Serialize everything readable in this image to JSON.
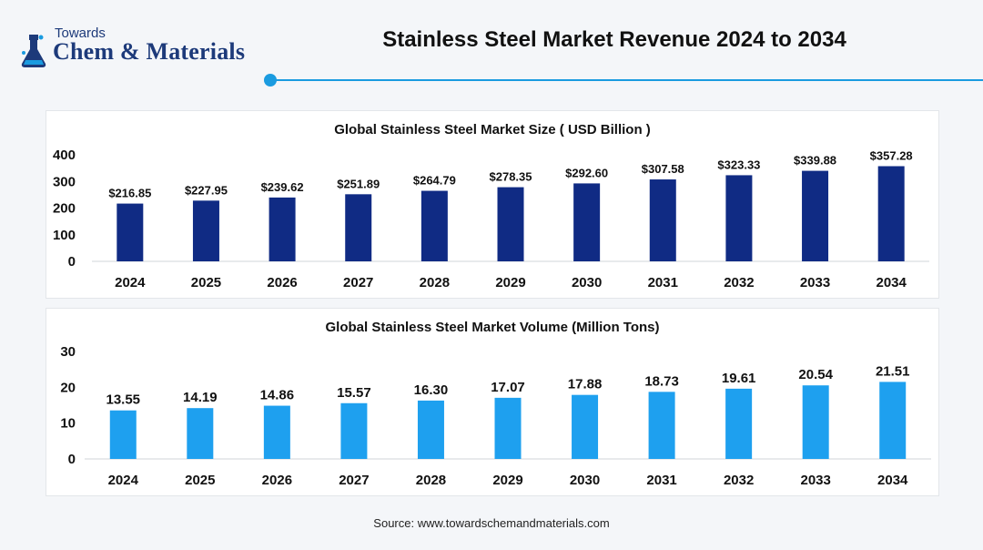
{
  "header": {
    "logo_small": "Towards",
    "logo_main": "Chem & Materials",
    "title": "Stainless Steel Market Revenue 2024 to 2034"
  },
  "colors": {
    "accent": "#1a9be0",
    "revenue_bar": "#102b84",
    "volume_bar": "#1ea0ef"
  },
  "icons": [
    "flask-icon"
  ],
  "source": "Source: www.towardschemandmaterials.com",
  "chart_data": [
    {
      "type": "bar",
      "title": "Global Stainless Steel Market Size ( USD Billion )",
      "categories": [
        "2024",
        "2025",
        "2026",
        "2027",
        "2028",
        "2029",
        "2030",
        "2031",
        "2032",
        "2033",
        "2034"
      ],
      "values": [
        216.85,
        227.95,
        239.62,
        251.89,
        264.79,
        278.35,
        292.6,
        307.58,
        323.33,
        339.88,
        357.28
      ],
      "data_labels": [
        "$216.85",
        "$227.95",
        "$239.62",
        "$251.89",
        "$264.79",
        "$278.35",
        "$292.60",
        "$307.58",
        "$323.33",
        "$339.88",
        "$357.28"
      ],
      "yticks": [
        "0",
        "100",
        "200",
        "300",
        "400"
      ],
      "ylim": [
        0,
        400
      ],
      "grid": false
    },
    {
      "type": "bar",
      "title": "Global Stainless Steel Market Volume (Million Tons)",
      "categories": [
        "2024",
        "2025",
        "2026",
        "2027",
        "2028",
        "2029",
        "2030",
        "2031",
        "2032",
        "2033",
        "2034"
      ],
      "values": [
        13.55,
        14.19,
        14.86,
        15.57,
        16.3,
        17.07,
        17.88,
        18.73,
        19.61,
        20.54,
        21.51
      ],
      "data_labels": [
        "13.55",
        "14.19",
        "14.86",
        "15.57",
        "16.30",
        "17.07",
        "17.88",
        "18.73",
        "19.61",
        "20.54",
        "21.51"
      ],
      "yticks": [
        "0",
        "10",
        "20",
        "30"
      ],
      "ylim": [
        0,
        30
      ],
      "grid": false
    }
  ]
}
